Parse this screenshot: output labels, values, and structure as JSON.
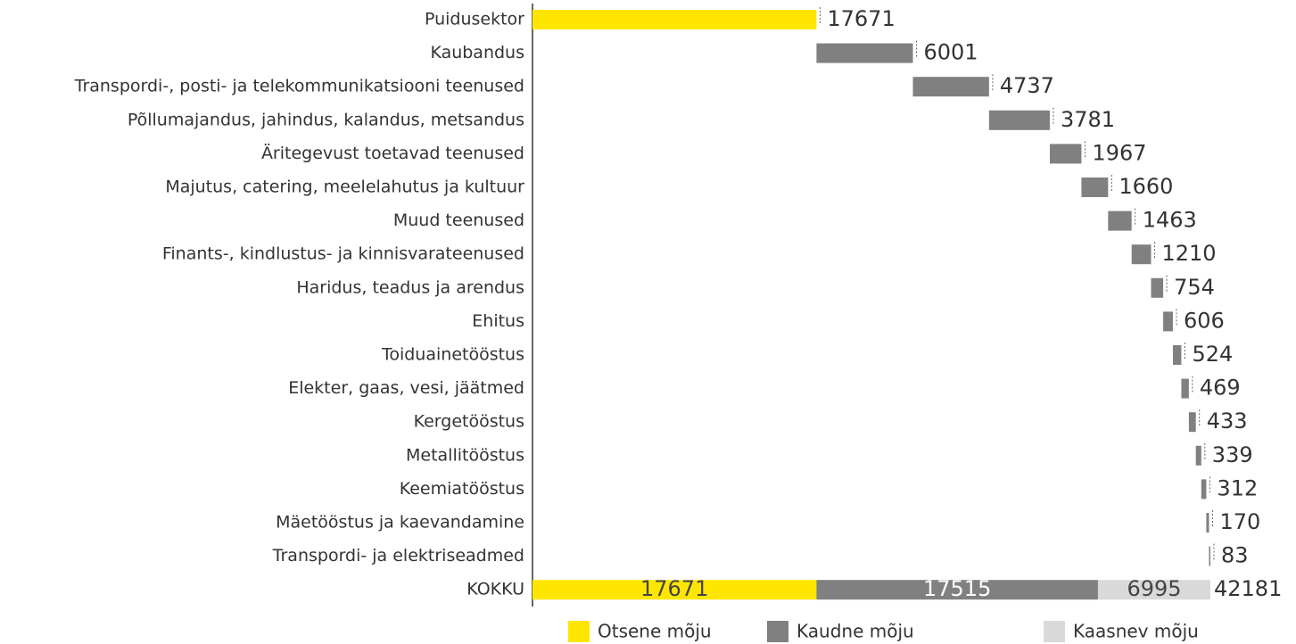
{
  "chart_data": {
    "type": "waterfall",
    "categories": [
      "Puidusektor",
      "Kaubandus",
      "Transpordi-, posti- ja telekommunikatsiooni teenused",
      "Põllumajandus, jahindus, kalandus, metsandus",
      "Äritegevust toetavad teenused",
      "Majutus, catering, meelelahutus ja kultuur",
      "Muud teenused",
      "Finants-, kindlustus- ja kinnisvarateenused",
      "Haridus, teadus ja arendus",
      "Ehitus",
      "Toiduainetööstus",
      "Elekter, gaas, vesi, jäätmed",
      "Kergetööstus",
      "Metallitööstus",
      "Keemiatööstus",
      "Mäetööstus ja kaevandamine",
      "Transpordi- ja elektriseadmed"
    ],
    "values": [
      17671,
      6001,
      4737,
      3781,
      1967,
      1660,
      1463,
      1210,
      754,
      606,
      524,
      469,
      433,
      339,
      312,
      170,
      83
    ],
    "colors": [
      "#ffe600",
      "#808080",
      "#808080",
      "#808080",
      "#808080",
      "#808080",
      "#808080",
      "#808080",
      "#808080",
      "#808080",
      "#808080",
      "#808080",
      "#808080",
      "#808080",
      "#808080",
      "#808080",
      "#808080"
    ],
    "total": {
      "label": "KOKKU",
      "value": 42181,
      "segments": [
        {
          "name": "Otsene mõju",
          "color": "#ffe600",
          "value": 17671
        },
        {
          "name": "Kaudne mõju",
          "color": "#808080",
          "value": 17515
        },
        {
          "name": "Kaasnev mõju",
          "color": "#d9d9d9",
          "value": 6995
        }
      ]
    }
  }
}
